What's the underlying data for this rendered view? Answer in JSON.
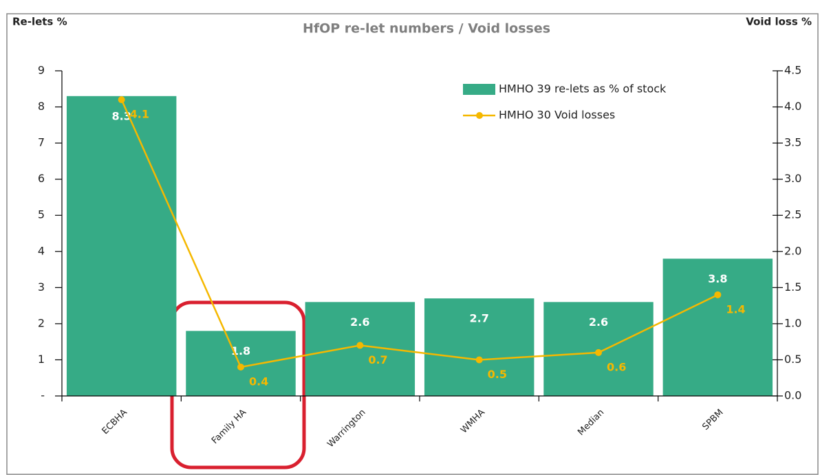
{
  "chart_data": {
    "type": "bar_line",
    "title": "HfOP re-let numbers / Void losses",
    "y_label": "Re-lets %",
    "y2_label": "Void loss %",
    "categories": [
      "ECBHA",
      "Family HA",
      "Warrington",
      "WMHA",
      "Median",
      "SPBM"
    ],
    "series": [
      {
        "name": "HMHO 39 re-lets as % of stock",
        "type": "bar",
        "color": "#36ab86",
        "values": [
          8.3,
          1.8,
          2.6,
          2.7,
          2.6,
          3.8
        ]
      },
      {
        "name": "HMHO 30 Void losses",
        "type": "line",
        "axis": "y2",
        "color": "#f5b800",
        "values": [
          4.1,
          0.4,
          0.7,
          0.5,
          0.6,
          1.4
        ]
      }
    ],
    "ylim": [
      0,
      9
    ],
    "yticks": [
      {
        "value": 0,
        "label": "-"
      },
      1,
      2,
      3,
      4,
      5,
      6,
      7,
      8,
      9
    ],
    "y2lim": [
      0,
      4.5
    ],
    "y2ticks": [
      {
        "value": 0,
        "label": "0.0"
      },
      0.5,
      {
        "value": 1,
        "label": "1.0"
      },
      1.5,
      {
        "value": 2,
        "label": "2.0"
      },
      2.5,
      {
        "value": 3,
        "label": "3.0"
      },
      3.5,
      {
        "value": 4,
        "label": "4.0"
      },
      4.5
    ],
    "legend": "top-right"
  }
}
